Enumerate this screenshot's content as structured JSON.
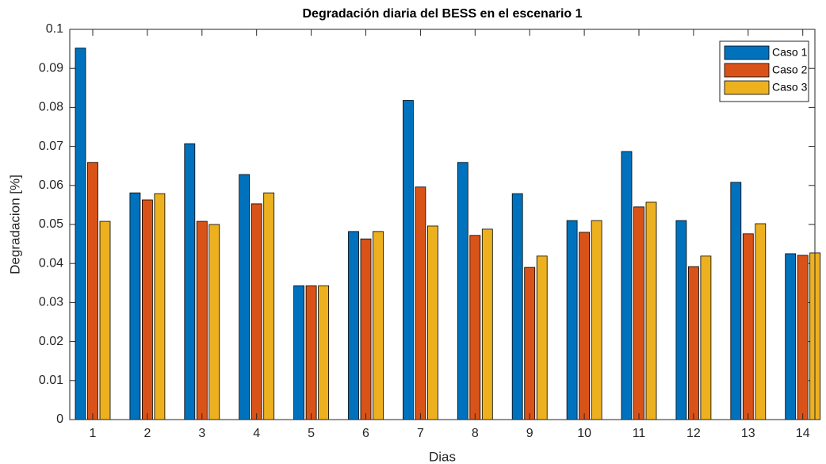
{
  "chart_data": {
    "type": "bar",
    "title": "Degradación diaria del BESS en el escenario 1",
    "x_label": "Dias",
    "y_label": "Degradacion [%]",
    "categories": [
      "1",
      "2",
      "3",
      "4",
      "5",
      "6",
      "7",
      "8",
      "9",
      "10",
      "11",
      "12",
      "13",
      "14"
    ],
    "series": [
      {
        "name": "Caso 1",
        "color": "#0072bd",
        "values": [
          0.0952,
          0.0581,
          0.0707,
          0.0628,
          0.0343,
          0.0482,
          0.0818,
          0.0659,
          0.0579,
          0.051,
          0.0687,
          0.051,
          0.0608,
          0.0425
        ]
      },
      {
        "name": "Caso 2",
        "color": "#d95319",
        "values": [
          0.0659,
          0.0563,
          0.0508,
          0.0553,
          0.0343,
          0.0463,
          0.0596,
          0.0472,
          0.039,
          0.048,
          0.0545,
          0.0392,
          0.0476,
          0.0421
        ]
      },
      {
        "name": "Caso 3",
        "color": "#edb120",
        "values": [
          0.0508,
          0.0579,
          0.05,
          0.0581,
          0.0343,
          0.0482,
          0.0496,
          0.0488,
          0.0419,
          0.051,
          0.0557,
          0.0419,
          0.0502,
          0.0427
        ]
      }
    ],
    "ylim": [
      0,
      0.1
    ],
    "yticks": [
      0,
      0.01,
      0.02,
      0.03,
      0.04,
      0.05,
      0.06,
      0.07,
      0.08,
      0.09,
      0.1
    ],
    "grid": false,
    "legend": "top-right"
  }
}
